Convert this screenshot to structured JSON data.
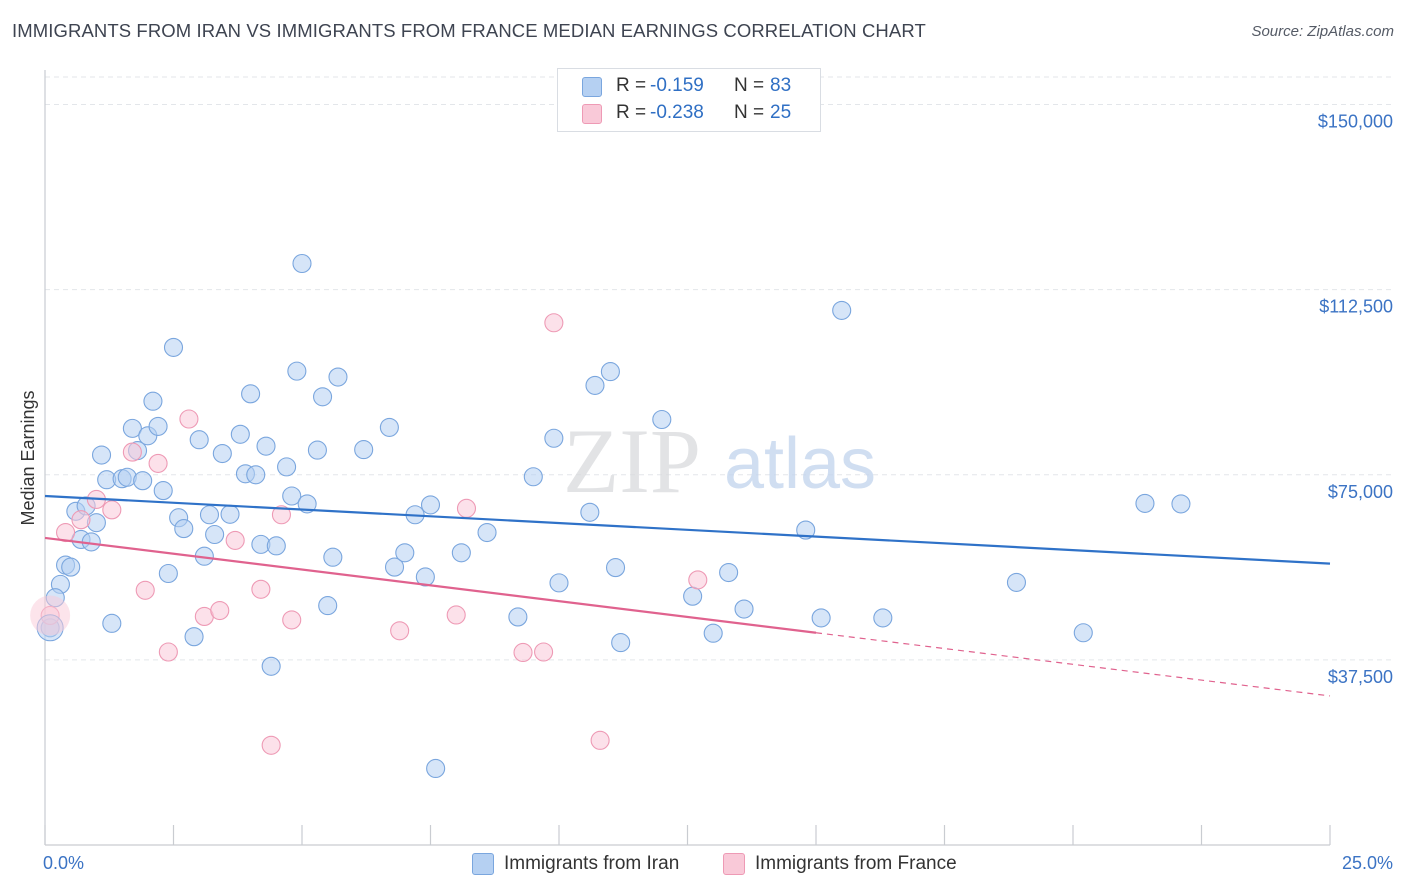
{
  "title": "IMMIGRANTS FROM IRAN VS IMMIGRANTS FROM FRANCE MEDIAN EARNINGS CORRELATION CHART",
  "source": "Source: ZipAtlas.com",
  "watermark": {
    "zip": "ZIP",
    "atlas": "atlas"
  },
  "legend": {
    "r_label": "R =",
    "n_label": "N =",
    "items": [
      {
        "r": "-0.159",
        "n": "83",
        "color": "#b5d0f2",
        "border": "#7aa6de"
      },
      {
        "r": "-0.238",
        "n": "25",
        "color": "#f9c9d8",
        "border": "#ee9ab5"
      }
    ]
  },
  "bottom_legend": [
    "Immigrants from Iran",
    "Immigrants from France"
  ],
  "chart_data": {
    "type": "scatter",
    "title": "IMMIGRANTS FROM IRAN VS IMMIGRANTS FROM FRANCE MEDIAN EARNINGS CORRELATION CHART",
    "xlabel": "",
    "ylabel": "Median Earnings",
    "xlim": [
      0,
      25
    ],
    "ylim": [
      0,
      157000
    ],
    "x_tick_labels": [
      "0.0%",
      "25.0%"
    ],
    "y_ticks": [
      37500,
      75000,
      112500,
      150000
    ],
    "y_tick_labels": [
      "$37,500",
      "$75,000",
      "$112,500",
      "$150,000"
    ],
    "grid": true,
    "legend_position": "top-center",
    "series": [
      {
        "name": "Immigrants from Iran",
        "color": "#7aa6de",
        "fill": "#b5d0f2",
        "line_color": "#2f72c8",
        "trend": {
          "x0": 0.0,
          "y0": 70700,
          "x1": 25.0,
          "y1": 57000
        },
        "points": [
          [
            0.3,
            52800
          ],
          [
            0.2,
            50100
          ],
          [
            0.1,
            44000
          ],
          [
            0.4,
            56700
          ],
          [
            0.5,
            56300
          ],
          [
            0.6,
            67600
          ],
          [
            0.7,
            61900
          ],
          [
            0.8,
            68700
          ],
          [
            0.9,
            61400
          ],
          [
            1.0,
            65300
          ],
          [
            1.1,
            79000
          ],
          [
            1.2,
            74000
          ],
          [
            1.3,
            44900
          ],
          [
            1.5,
            74200
          ],
          [
            1.6,
            74500
          ],
          [
            1.7,
            84400
          ],
          [
            1.8,
            79900
          ],
          [
            1.9,
            73800
          ],
          [
            2.0,
            82900
          ],
          [
            2.1,
            89900
          ],
          [
            2.2,
            84800
          ],
          [
            2.3,
            71800
          ],
          [
            2.4,
            55000
          ],
          [
            2.5,
            100800
          ],
          [
            2.6,
            66300
          ],
          [
            2.7,
            64100
          ],
          [
            2.9,
            42200
          ],
          [
            3.0,
            82100
          ],
          [
            3.1,
            58500
          ],
          [
            3.2,
            66900
          ],
          [
            3.3,
            62900
          ],
          [
            3.45,
            79300
          ],
          [
            3.6,
            67000
          ],
          [
            3.8,
            83200
          ],
          [
            3.9,
            75200
          ],
          [
            4.0,
            91400
          ],
          [
            4.1,
            75000
          ],
          [
            4.2,
            60900
          ],
          [
            4.3,
            80800
          ],
          [
            4.4,
            36200
          ],
          [
            4.5,
            60600
          ],
          [
            4.7,
            76600
          ],
          [
            4.8,
            70700
          ],
          [
            4.9,
            96000
          ],
          [
            5.0,
            117800
          ],
          [
            5.1,
            69100
          ],
          [
            5.3,
            80000
          ],
          [
            5.4,
            90800
          ],
          [
            5.5,
            48500
          ],
          [
            5.6,
            58300
          ],
          [
            5.7,
            94800
          ],
          [
            6.2,
            80100
          ],
          [
            6.7,
            84600
          ],
          [
            6.8,
            56300
          ],
          [
            7.0,
            59200
          ],
          [
            7.2,
            66900
          ],
          [
            7.4,
            54300
          ],
          [
            7.5,
            68900
          ],
          [
            7.6,
            15500
          ],
          [
            8.1,
            59200
          ],
          [
            8.6,
            63300
          ],
          [
            9.2,
            46200
          ],
          [
            9.5,
            74600
          ],
          [
            9.9,
            82400
          ],
          [
            10.0,
            53100
          ],
          [
            10.6,
            67400
          ],
          [
            10.7,
            93100
          ],
          [
            11.0,
            95900
          ],
          [
            11.1,
            56200
          ],
          [
            11.2,
            41000
          ],
          [
            12.0,
            86200
          ],
          [
            12.6,
            50400
          ],
          [
            13.0,
            42900
          ],
          [
            13.3,
            55200
          ],
          [
            13.6,
            47800
          ],
          [
            14.8,
            63800
          ],
          [
            15.1,
            46000
          ],
          [
            15.5,
            108300
          ],
          [
            16.3,
            46000
          ],
          [
            18.9,
            53200
          ],
          [
            20.2,
            43000
          ],
          [
            21.4,
            69200
          ],
          [
            22.1,
            69100
          ]
        ],
        "point_size": 8
      },
      {
        "name": "Immigrants from France",
        "color": "#ee9ab5",
        "fill": "#f9c9d8",
        "line_color": "#e0628e",
        "trend": {
          "x0": 0.0,
          "y0": 62200,
          "x1": 15.0,
          "y1": 43000,
          "dash_x1": 25.0,
          "dash_y1": 30200
        },
        "points": [
          [
            0.1,
            46500
          ],
          [
            0.4,
            63300
          ],
          [
            0.7,
            65900
          ],
          [
            1.0,
            70000
          ],
          [
            1.3,
            67900
          ],
          [
            1.7,
            79600
          ],
          [
            1.95,
            51600
          ],
          [
            2.2,
            77300
          ],
          [
            2.4,
            39100
          ],
          [
            2.8,
            86300
          ],
          [
            3.1,
            46300
          ],
          [
            3.4,
            47500
          ],
          [
            3.7,
            61700
          ],
          [
            4.2,
            51800
          ],
          [
            4.4,
            20200
          ],
          [
            4.6,
            66900
          ],
          [
            4.8,
            45600
          ],
          [
            6.9,
            43400
          ],
          [
            8.0,
            46600
          ],
          [
            8.2,
            68200
          ],
          [
            9.3,
            39000
          ],
          [
            9.7,
            39100
          ],
          [
            9.9,
            105800
          ],
          [
            10.8,
            21200
          ],
          [
            12.7,
            53700
          ]
        ],
        "point_size": 8
      }
    ]
  }
}
